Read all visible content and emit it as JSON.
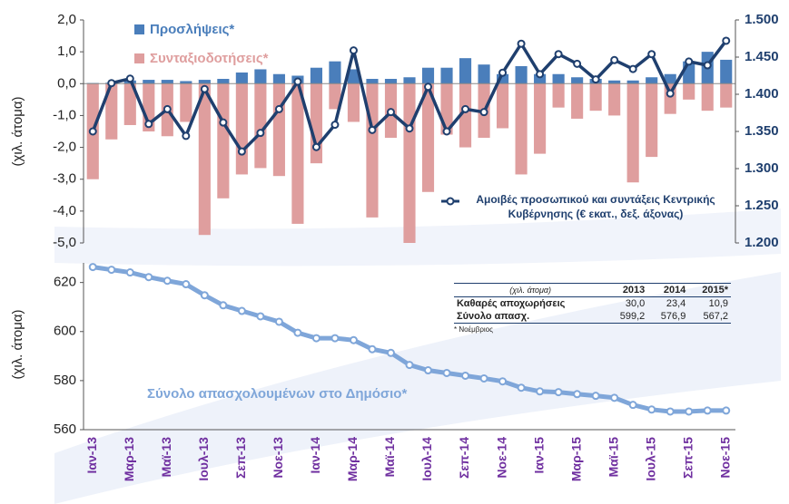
{
  "chart_data": [
    {
      "type": "bar",
      "ylabel": "(χιλ. άτομα)",
      "ylim": [
        -5,
        2
      ],
      "yticks": [
        {
          "value": 2,
          "label": "2,0"
        },
        {
          "value": 1,
          "label": "1,0"
        },
        {
          "value": 0,
          "label": "0,0"
        },
        {
          "value": -1,
          "label": "-1,0"
        },
        {
          "value": -2,
          "label": "-2,0"
        },
        {
          "value": -3,
          "label": "-3,0"
        },
        {
          "value": -4,
          "label": "-4,0"
        },
        {
          "value": -5,
          "label": "-5,0"
        }
      ],
      "y2lim": [
        1.2,
        1.5
      ],
      "y2ticks": [
        {
          "value": 1.5,
          "label": "1.500"
        },
        {
          "value": 1.45,
          "label": "1.450"
        },
        {
          "value": 1.4,
          "label": "1.400"
        },
        {
          "value": 1.35,
          "label": "1.350"
        },
        {
          "value": 1.3,
          "label": "1.300"
        },
        {
          "value": 1.25,
          "label": "1.250"
        },
        {
          "value": 1.2,
          "label": "1.200"
        }
      ],
      "series": [
        {
          "name": "Προσλήψεις*",
          "color": "#4a7ebb",
          "values": [
            0.02,
            0.03,
            0.1,
            0.12,
            0.12,
            0.08,
            0.12,
            0.15,
            0.35,
            0.45,
            0.3,
            0.25,
            0.5,
            0.7,
            0.45,
            0.15,
            0.15,
            0.2,
            0.5,
            0.5,
            0.8,
            0.6,
            0.3,
            0.55,
            0.3,
            0.3,
            0.2,
            0.15,
            0.1,
            0.1,
            0.2,
            0.3,
            0.7,
            1.0,
            0.75
          ]
        },
        {
          "name": "Συνταξιοδοτήσεις*",
          "color": "#df9e9e",
          "values": [
            -3.0,
            -1.75,
            -1.3,
            -1.5,
            -1.65,
            -1.2,
            -4.75,
            -3.6,
            -2.85,
            -2.65,
            -2.9,
            -4.4,
            -2.5,
            -0.8,
            -1.2,
            -4.2,
            -1.7,
            -5.0,
            -3.4,
            -1.6,
            -2.0,
            -1.7,
            -1.4,
            -2.85,
            -2.2,
            -0.75,
            -1.1,
            -0.85,
            -1.0,
            -3.1,
            -2.3,
            -0.95,
            -0.5,
            -0.85,
            -0.75
          ]
        },
        {
          "name": "Αμοιβές προσωπικού και συντάξεις Κεντρικής Κυβέρνησης (€ εκατ., δεξ. άξονας)",
          "type": "line",
          "axis": "y2",
          "color": "#1f3f6e",
          "values": [
            1.35,
            1.415,
            1.421,
            1.36,
            1.38,
            1.344,
            1.407,
            1.362,
            1.323,
            1.348,
            1.38,
            1.417,
            1.329,
            1.359,
            1.459,
            1.352,
            1.376,
            1.354,
            1.41,
            1.35,
            1.38,
            1.376,
            1.429,
            1.468,
            1.427,
            1.454,
            1.441,
            1.42,
            1.446,
            1.434,
            1.454,
            1.401,
            1.444,
            1.439,
            1.472
          ]
        }
      ]
    },
    {
      "type": "line",
      "ylabel": "(χιλ. άτομα)",
      "ylim": [
        560,
        628
      ],
      "yticks": [
        560,
        580,
        600,
        620
      ],
      "categories": [
        "Ιαν-13",
        null,
        "Μαρ-13",
        null,
        "Μαϊ-13",
        null,
        "Ιουλ-13",
        null,
        "Σεπ-13",
        null,
        "Νοε-13",
        null,
        "Ιαν-14",
        null,
        "Μαρ-14",
        null,
        "Μαϊ-14",
        null,
        "Ιουλ-14",
        null,
        "Σεπ-14",
        null,
        "Νοε-14",
        null,
        "Ιαν-15",
        null,
        "Μαρ-15",
        null,
        "Μαϊ-15",
        null,
        "Ιουλ-15",
        null,
        "Σεπ-15",
        null,
        "Νοε-15"
      ],
      "series": [
        {
          "name": "Σύνολο απασχολουμένων στο Δημόσιο*",
          "color": "#7fa6d9",
          "values": [
            626.3,
            625.2,
            624.1,
            622.2,
            620.7,
            619.3,
            614.8,
            610.7,
            608.4,
            606.2,
            604.0,
            599.5,
            597.3,
            597.3,
            596.5,
            592.8,
            591.3,
            586.4,
            584.2,
            583.1,
            582.0,
            580.9,
            579.7,
            577.1,
            575.6,
            575.3,
            574.5,
            573.8,
            573.0,
            570.1,
            568.2,
            567.4,
            567.4,
            567.8,
            567.8
          ]
        }
      ]
    }
  ],
  "table": {
    "header": [
      "(χιλ. άτομα)",
      "2013",
      "2014",
      "2015*"
    ],
    "rows": [
      [
        "Καθαρές αποχωρήσεις",
        "30,0",
        "23,4",
        "10,9"
      ],
      [
        "Σύνολο απασχ.",
        "599,2",
        "576,9",
        "567,2"
      ]
    ],
    "note": "* Νοέμβριος"
  }
}
